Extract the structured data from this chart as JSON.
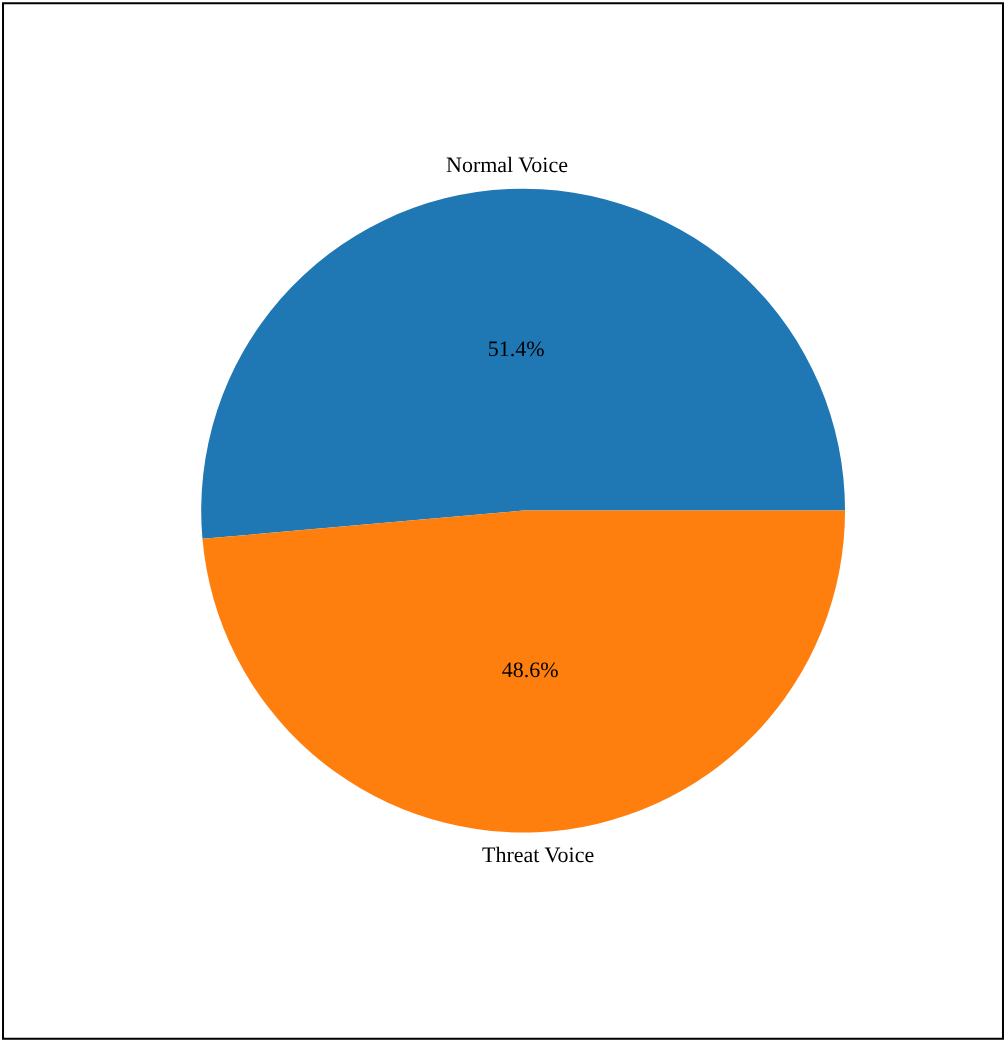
{
  "chart_data": {
    "type": "pie",
    "categories": [
      "Normal Voice",
      "Threat Voice"
    ],
    "values": [
      51.4,
      48.6
    ],
    "value_labels": [
      "51.4%",
      "48.6%"
    ],
    "colors": [
      "#1f77b4",
      "#ff7f0e"
    ],
    "legend": false
  }
}
